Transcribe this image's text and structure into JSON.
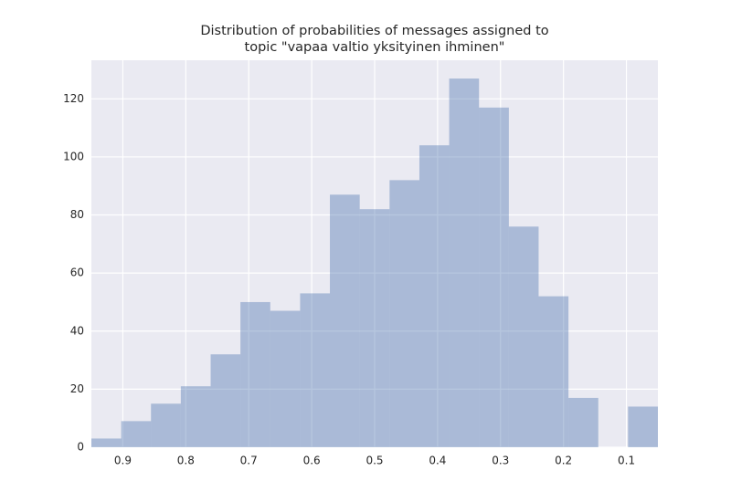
{
  "chart_data": {
    "type": "histogram",
    "title": [
      "Distribution of probabilities of messages assigned to",
      "topic \"vapaa valtio yksityinen ihminen\""
    ],
    "bins": [
      0.05,
      0.0974,
      0.1447,
      0.1921,
      0.2395,
      0.2868,
      0.3342,
      0.3816,
      0.4289,
      0.4763,
      0.5237,
      0.5711,
      0.6184,
      0.6658,
      0.7132,
      0.7605,
      0.8079,
      0.8553,
      0.9026,
      0.95
    ],
    "values": [
      14,
      0,
      17,
      52,
      76,
      117,
      127,
      104,
      92,
      82,
      87,
      53,
      47,
      50,
      32,
      21,
      15,
      9,
      3
    ],
    "color": "#4c72b0",
    "xlim": [
      0.95,
      0.05
    ],
    "xticks": [
      0.9,
      0.8,
      0.7,
      0.6,
      0.5,
      0.4,
      0.3,
      0.2,
      0.1
    ],
    "ylim": [
      0,
      133.3
    ],
    "yticks": [
      0,
      20,
      40,
      60,
      80,
      100,
      120
    ],
    "grid": true
  }
}
